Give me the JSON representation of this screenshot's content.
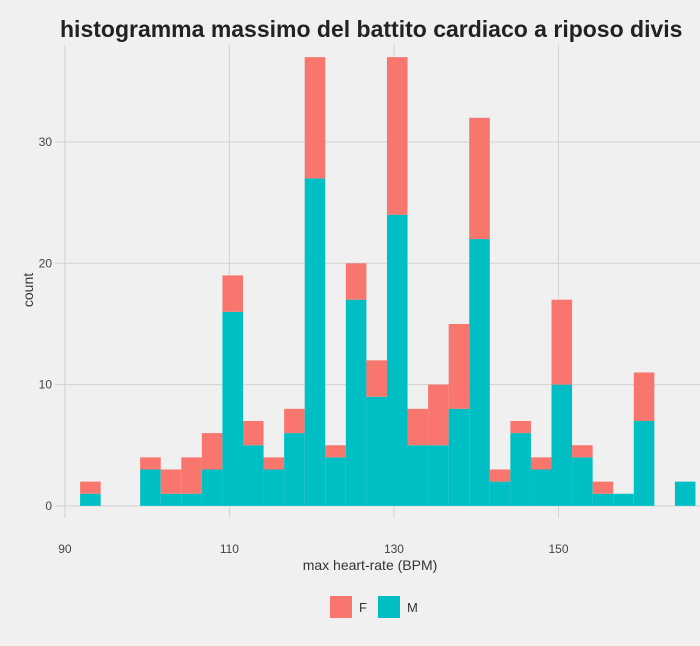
{
  "chart_data": {
    "type": "bar",
    "stacked": true,
    "title": "histogramma massimo del battito cardiaco a riposo divis",
    "xlabel": "max heart-rate (BPM)",
    "ylabel": "count",
    "xlim": [
      88.8,
      167.2
    ],
    "ylim": [
      -1,
      38
    ],
    "x_ticks": [
      90,
      110,
      130,
      150
    ],
    "y_ticks": [
      0,
      10,
      20,
      30
    ],
    "bin_width": 2.5,
    "bin_centers": [
      93.1,
      100.4,
      102.9,
      105.4,
      107.9,
      110.4,
      112.9,
      115.4,
      117.9,
      120.4,
      122.9,
      125.4,
      127.9,
      130.4,
      132.9,
      135.4,
      137.9,
      140.4,
      142.9,
      145.4,
      147.9,
      150.4,
      152.9,
      155.4,
      157.9,
      160.4,
      165.4
    ],
    "series": [
      {
        "name": "M",
        "color": "#00bfc4",
        "values": [
          1,
          3,
          1,
          1,
          3,
          16,
          5,
          3,
          6,
          27,
          4,
          17,
          9,
          24,
          5,
          5,
          8,
          22,
          2,
          6,
          3,
          10,
          4,
          1,
          1,
          7,
          2
        ]
      },
      {
        "name": "F",
        "color": "#f8766d",
        "values": [
          1,
          1,
          2,
          3,
          3,
          3,
          2,
          1,
          2,
          10,
          1,
          3,
          3,
          13,
          3,
          5,
          7,
          10,
          1,
          1,
          1,
          7,
          1,
          1,
          0,
          4,
          0
        ]
      }
    ],
    "legend": {
      "position": "bottom",
      "items": [
        "F",
        "M"
      ]
    },
    "grid": true
  }
}
